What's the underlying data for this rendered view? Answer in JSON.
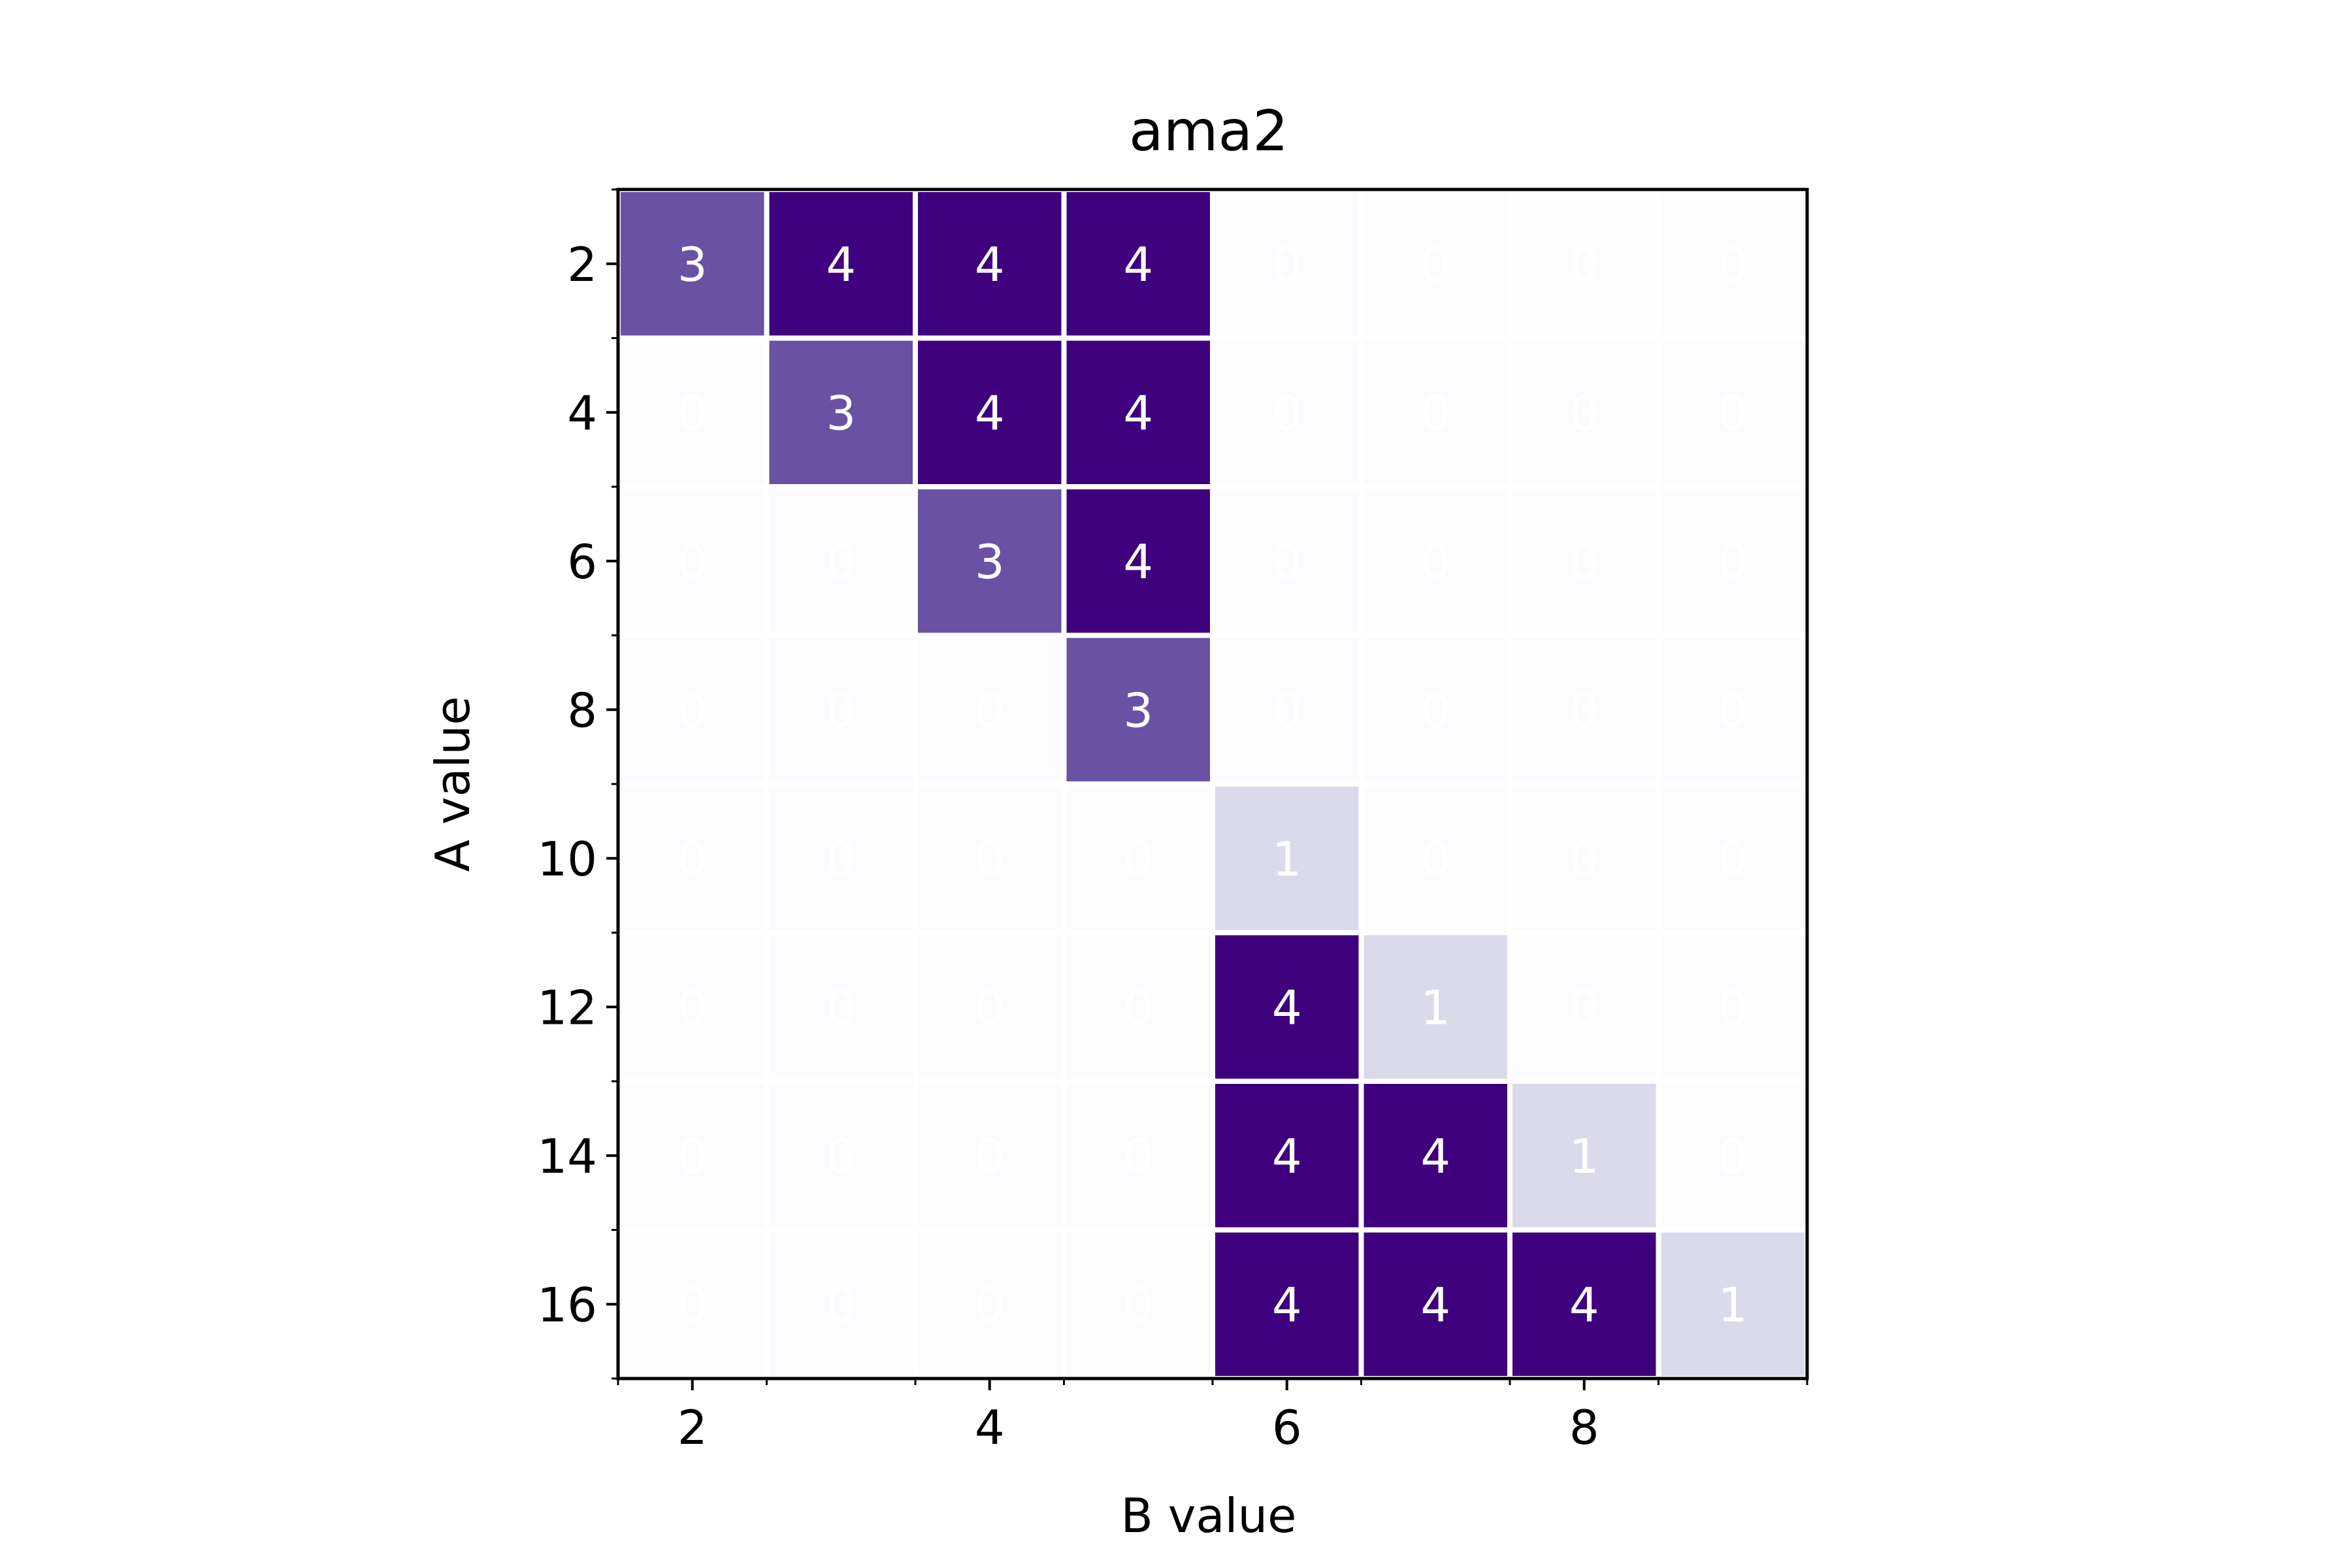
{
  "chart_data": {
    "type": "heatmap",
    "title": "ama2",
    "xlabel": "B value",
    "ylabel": "A value",
    "x_values": [
      2,
      3,
      4,
      5,
      6,
      7,
      8,
      9
    ],
    "y_values": [
      2,
      4,
      6,
      8,
      10,
      12,
      14,
      16
    ],
    "x_tick_labels": [
      "2",
      "4",
      "6",
      "8"
    ],
    "y_tick_labels": [
      "2",
      "4",
      "6",
      "8",
      "10",
      "12",
      "14",
      "16"
    ],
    "values": [
      [
        3,
        4,
        4,
        4,
        0,
        0,
        0,
        0
      ],
      [
        0,
        3,
        4,
        4,
        0,
        0,
        0,
        0
      ],
      [
        0,
        0,
        3,
        4,
        0,
        0,
        0,
        0
      ],
      [
        0,
        0,
        0,
        3,
        0,
        0,
        0,
        0
      ],
      [
        0,
        0,
        0,
        0,
        1,
        0,
        0,
        0
      ],
      [
        0,
        0,
        0,
        0,
        4,
        1,
        0,
        0
      ],
      [
        0,
        0,
        0,
        0,
        4,
        4,
        1,
        0
      ],
      [
        0,
        0,
        0,
        0,
        4,
        4,
        4,
        1
      ]
    ],
    "colormap": "Purples",
    "value_range": [
      0,
      4
    ],
    "colors": {
      "0": "#fcfbfd",
      "1": "#dadaeb",
      "3": "#6a51a3",
      "4": "#3f007d"
    },
    "cell_label_color": "#ffffff",
    "grid": false,
    "legend": "none"
  }
}
